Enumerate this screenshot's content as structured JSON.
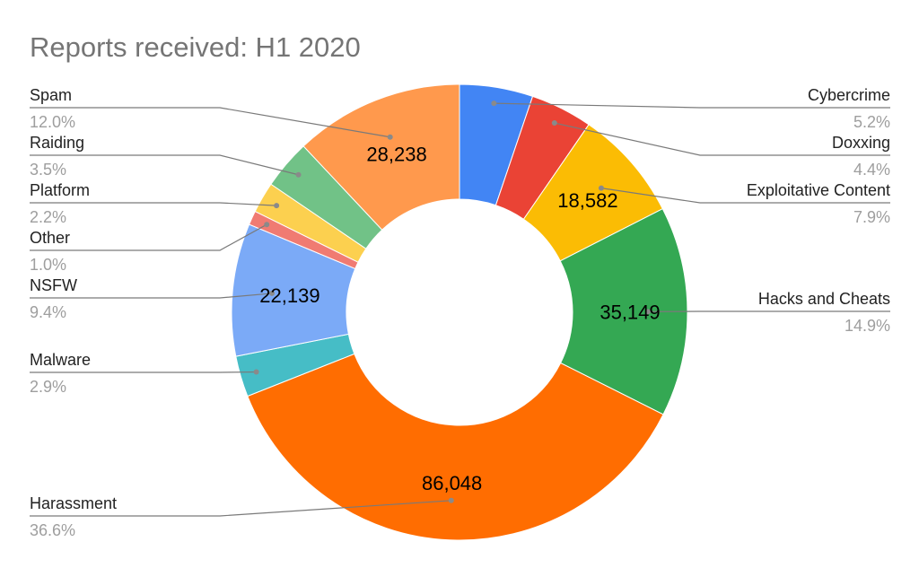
{
  "chart_data": {
    "type": "pie",
    "title": "Reports received: H1 2020",
    "donut": true,
    "slices": [
      {
        "label": "Cybercrime",
        "percent_label": "5.2%",
        "percent": 5.2,
        "value_label": "",
        "color": "#4285f4"
      },
      {
        "label": "Doxxing",
        "percent_label": "4.4%",
        "percent": 4.4,
        "value_label": "",
        "color": "#ea4335"
      },
      {
        "label": "Exploitative Content",
        "percent_label": "7.9%",
        "percent": 7.9,
        "value": 18582,
        "value_label": "18,582",
        "color": "#fbbc04"
      },
      {
        "label": "Hacks and Cheats",
        "percent_label": "14.9%",
        "percent": 14.9,
        "value": 35149,
        "value_label": "35,149",
        "color": "#34a853"
      },
      {
        "label": "Harassment",
        "percent_label": "36.6%",
        "percent": 36.6,
        "value": 86048,
        "value_label": "86,048",
        "color": "#ff6d01"
      },
      {
        "label": "Malware",
        "percent_label": "2.9%",
        "percent": 2.9,
        "value_label": "",
        "color": "#46bdc6"
      },
      {
        "label": "NSFW",
        "percent_label": "9.4%",
        "percent": 9.4,
        "value": 22139,
        "value_label": "22,139",
        "color": "#7baaf7"
      },
      {
        "label": "Other",
        "percent_label": "1.0%",
        "percent": 1.0,
        "value_label": "",
        "color": "#f07b72"
      },
      {
        "label": "Platform",
        "percent_label": "2.2%",
        "percent": 2.2,
        "value_label": "",
        "color": "#fcd04f"
      },
      {
        "label": "Raiding",
        "percent_label": "3.5%",
        "percent": 3.5,
        "value_label": "",
        "color": "#71c287"
      },
      {
        "label": "Spam",
        "percent_label": "12.0%",
        "percent": 12.0,
        "value": 28238,
        "value_label": "28,238",
        "color": "#ff994d"
      }
    ]
  }
}
